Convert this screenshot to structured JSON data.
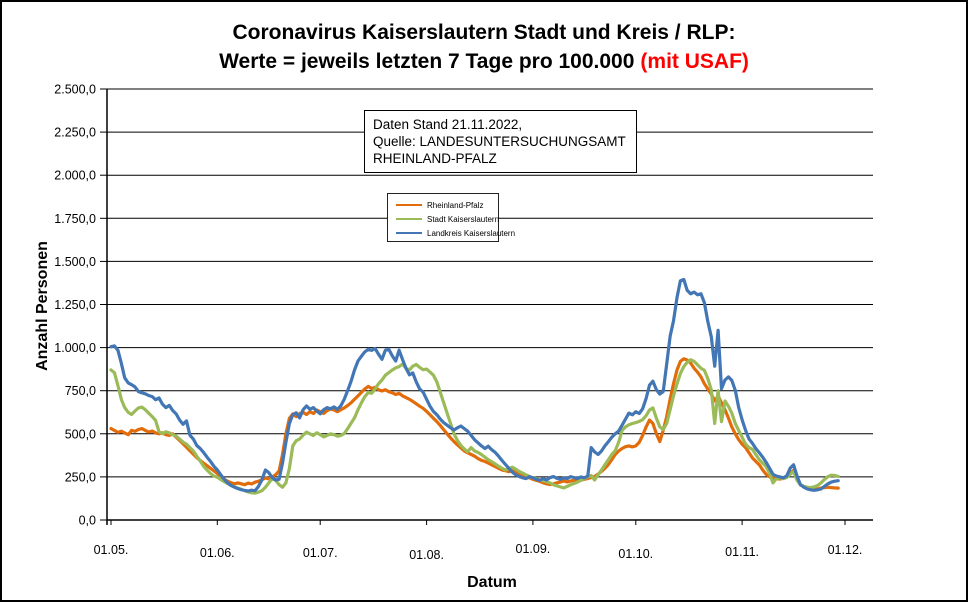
{
  "title": {
    "line1": "Coronavirus Kaiserslautern Stadt und Kreis / RLP:",
    "line2_black": "Werte = jeweils letzten 7 Tage pro 100.000",
    "line2_red": "(mit USAF)",
    "red_color": "#FF0000"
  },
  "info_box": {
    "lines": [
      "Daten Stand 21.11.2022,",
      "Quelle: LANDESUNTERSUCHUNGSAMT",
      "RHEINLAND-PFALZ"
    ]
  },
  "chart_data": {
    "type": "line",
    "title": "Coronavirus Kaiserslautern Stadt und Kreis / RLP: Werte = jeweils letzten 7 Tage pro 100.000 (mit USAF)",
    "xlabel": "Datum",
    "ylabel": "Anzahl Personen",
    "ylim": [
      0,
      2500
    ],
    "ytick_step": 250,
    "grid": "horizontal-only",
    "legend_position": "inside-upper-middle",
    "y_tick_labels": [
      "2.500,0",
      "2.250,0",
      "2.000,0",
      "1.750,0",
      "1.500,0",
      "1.250,0",
      "1.000,0",
      "750,0",
      "500,0",
      "250,0",
      "0,0"
    ],
    "x_tick_labels": [
      {
        "label": "01.05.",
        "day": 0,
        "dy": 1
      },
      {
        "label": "01.06.",
        "day": 31,
        "dy": 4
      },
      {
        "label": "01.07.",
        "day": 61,
        "dy": 4
      },
      {
        "label": "01.08.",
        "day": 92,
        "dy": 6
      },
      {
        "label": "01.09.",
        "day": 123,
        "dy": 0
      },
      {
        "label": "01.10.",
        "day": 153,
        "dy": 5
      },
      {
        "label": "01.11.",
        "day": 184,
        "dy": 3
      },
      {
        "label": "01.12.",
        "day": 214,
        "dy": 1
      }
    ],
    "x_unit": "daily values, day 0 = 01.05.2022",
    "series": [
      {
        "name": "Rheinland-Pfalz",
        "slug": "rheinland-pfalz",
        "color": "#E36C0A",
        "start_day": 0,
        "values": [
          530,
          520,
          508,
          515,
          505,
          495,
          520,
          514,
          525,
          530,
          520,
          510,
          516,
          505,
          500,
          506,
          495,
          490,
          500,
          480,
          462,
          442,
          422,
          402,
          382,
          362,
          345,
          330,
          315,
          300,
          285,
          270,
          252,
          236,
          225,
          216,
          210,
          215,
          210,
          205,
          214,
          209,
          219,
          225,
          234,
          244,
          239,
          250,
          262,
          285,
          380,
          500,
          590,
          615,
          600,
          618,
          625,
          612,
          628,
          618,
          638,
          628,
          618,
          634,
          645,
          638,
          628,
          640,
          650,
          664,
          680,
          700,
          720,
          740,
          760,
          775,
          762,
          770,
          755,
          748,
          756,
          744,
          738,
          728,
          735,
          720,
          710,
          700,
          688,
          674,
          660,
          648,
          630,
          610,
          590,
          570,
          548,
          524,
          500,
          476,
          455,
          436,
          418,
          400,
          390,
          380,
          370,
          356,
          346,
          340,
          330,
          320,
          310,
          300,
          290,
          286,
          280,
          286,
          280,
          270,
          260,
          250,
          245,
          236,
          230,
          224,
          216,
          210,
          206,
          210,
          216,
          220,
          226,
          221,
          226,
          230,
          226,
          231,
          236,
          241,
          246,
          252,
          266,
          282,
          300,
          322,
          350,
          380,
          400,
          415,
          425,
          430,
          424,
          430,
          450,
          490,
          540,
          580,
          560,
          500,
          455,
          520,
          600,
          700,
          790,
          870,
          920,
          935,
          928,
          910,
          880,
          858,
          830,
          790,
          760,
          730,
          690,
          720,
          680,
          640,
          592,
          540,
          500,
          466,
          440,
          420,
          390,
          360,
          340,
          320,
          290,
          265,
          250,
          245,
          240,
          238,
          242,
          252,
          268,
          288,
          235,
          205,
          192,
          185,
          180,
          178,
          180,
          185,
          188,
          190,
          188,
          186,
          185
        ]
      },
      {
        "name": "Stadt Kaiserslautern",
        "slug": "stadt-kaiserslautern",
        "color": "#9BBB59",
        "start_day": 0,
        "values": [
          870,
          855,
          780,
          700,
          652,
          625,
          612,
          632,
          650,
          655,
          640,
          620,
          600,
          578,
          512,
          500,
          512,
          505,
          495,
          486,
          470,
          452,
          440,
          420,
          400,
          370,
          342,
          312,
          290,
          270,
          255,
          248,
          235,
          222,
          212,
          200,
          192,
          185,
          178,
          170,
          163,
          158,
          156,
          162,
          170,
          190,
          215,
          240,
          230,
          205,
          190,
          215,
          300,
          430,
          460,
          470,
          492,
          510,
          500,
          490,
          506,
          495,
          482,
          490,
          500,
          495,
          486,
          490,
          502,
          530,
          562,
          592,
          640,
          680,
          715,
          740,
          735,
          760,
          790,
          812,
          840,
          855,
          870,
          882,
          890,
          905,
          880,
          870,
          892,
          902,
          885,
          872,
          875,
          858,
          840,
          800,
          740,
          680,
          620,
          560,
          500,
          462,
          432,
          412,
          396,
          420,
          400,
          392,
          380,
          365,
          350,
          338,
          325,
          312,
          300,
          290,
          298,
          306,
          295,
          282,
          272,
          262,
          252,
          245,
          240,
          232,
          228,
          222,
          215,
          205,
          198,
          192,
          186,
          195,
          205,
          212,
          220,
          230,
          240,
          250,
          258,
          232,
          262,
          290,
          320,
          350,
          380,
          402,
          450,
          520,
          540,
          552,
          560,
          565,
          572,
          582,
          605,
          638,
          650,
          590,
          540,
          525,
          560,
          640,
          720,
          790,
          850,
          890,
          915,
          930,
          920,
          900,
          880,
          868,
          820,
          755,
          560,
          750,
          570,
          690,
          660,
          620,
          560,
          520,
          480,
          440,
          420,
          410,
          380,
          350,
          330,
          310,
          270,
          215,
          240,
          245,
          240,
          246,
          265,
          280,
          230,
          205,
          195,
          190,
          188,
          192,
          200,
          215,
          235,
          252,
          260,
          258,
          253
        ]
      },
      {
        "name": "Landkreis Kaiserslautern",
        "slug": "landkreis-kaiserslautern",
        "color": "#4276B4",
        "start_day": 0,
        "values": [
          1005,
          1010,
          985,
          910,
          825,
          795,
          785,
          772,
          745,
          738,
          732,
          722,
          716,
          698,
          708,
          672,
          652,
          665,
          635,
          615,
          580,
          555,
          575,
          492,
          470,
          432,
          415,
          392,
          365,
          340,
          312,
          290,
          262,
          236,
          215,
          200,
          190,
          182,
          176,
          171,
          168,
          173,
          170,
          195,
          232,
          290,
          275,
          246,
          232,
          236,
          330,
          450,
          560,
          612,
          622,
          592,
          640,
          662,
          642,
          652,
          632,
          616,
          640,
          652,
          645,
          656,
          642,
          662,
          700,
          752,
          805,
          870,
          922,
          950,
          975,
          990,
          984,
          995,
          962,
          932,
          985,
          990,
          952,
          922,
          985,
          930,
          880,
          842,
          853,
          800,
          760,
          742,
          700,
          660,
          630,
          610,
          585,
          565,
          550,
          535,
          522,
          535,
          545,
          530,
          515,
          490,
          465,
          448,
          430,
          415,
          428,
          408,
          392,
          370,
          345,
          322,
          300,
          278,
          262,
          252,
          245,
          240,
          252,
          244,
          236,
          230,
          240,
          232,
          246,
          252,
          242,
          236,
          244,
          240,
          252,
          246,
          240,
          250,
          245,
          255,
          420,
          395,
          380,
          400,
          430,
          455,
          480,
          500,
          515,
          550,
          585,
          620,
          610,
          628,
          618,
          645,
          705,
          782,
          805,
          755,
          730,
          745,
          905,
          1065,
          1155,
          1290,
          1388,
          1395,
          1332,
          1312,
          1322,
          1306,
          1312,
          1260,
          1152,
          1062,
          892,
          1100,
          762,
          812,
          830,
          810,
          752,
          652,
          582,
          520,
          470,
          445,
          415,
          390,
          365,
          335,
          300,
          265,
          255,
          250,
          245,
          255,
          300,
          320,
          255,
          205,
          190,
          180,
          175,
          172,
          175,
          180,
          195,
          210,
          220,
          225,
          228
        ]
      }
    ]
  }
}
